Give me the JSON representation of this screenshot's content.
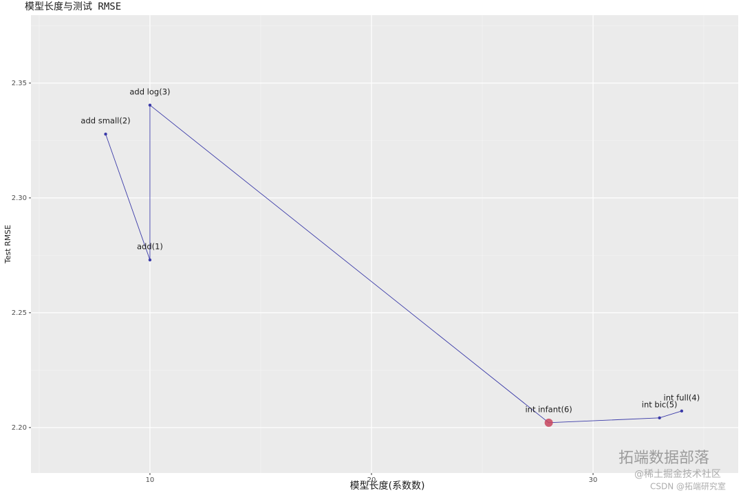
{
  "chart_data": {
    "type": "line",
    "title": "模型长度与测试 RMSE",
    "x_label": "模型长度(系数数)",
    "y_label": "Test RMSE",
    "x": [
      8,
      10,
      10,
      28,
      33,
      34
    ],
    "values": [
      2.3278,
      2.273,
      2.3404,
      2.2021,
      2.2042,
      2.2072
    ],
    "point_labels": [
      "add small(2)",
      "add(1)",
      "add log(3)",
      "int infant(6)",
      "int bic(5)",
      "int full(4)"
    ],
    "color": "#3a3aa8",
    "highlight_point": 3,
    "highlight_color": "#c8455e",
    "xlim": [
      4.63,
      36.55
    ],
    "ylim": [
      2.1802,
      2.3796
    ],
    "xticks": [
      10,
      20,
      30
    ],
    "yticks": [
      {
        "value": 2.2,
        "label": "2.20"
      },
      {
        "value": 2.25,
        "label": "2.25"
      },
      {
        "value": 2.3,
        "label": "2.30"
      },
      {
        "value": 2.35,
        "label": "2.35"
      }
    ],
    "x_minor": [
      5,
      15,
      25,
      35
    ],
    "y_minor": [
      2.225,
      2.275,
      2.325,
      2.375
    ],
    "grid": true
  },
  "watermark": {
    "brand": "拓端数据部落",
    "juejin": "@稀土掘金技术社区",
    "csdn": "CSDN @拓端研究室"
  }
}
